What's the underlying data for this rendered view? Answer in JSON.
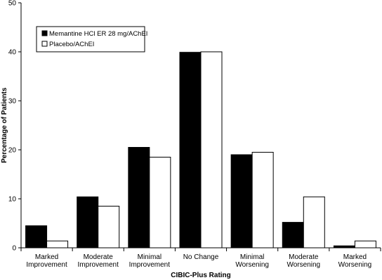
{
  "chart_data": {
    "type": "bar",
    "categories": [
      [
        "Marked",
        "Improvement"
      ],
      [
        "Moderate",
        "Improvement"
      ],
      [
        "Minimal",
        "Improvement"
      ],
      [
        "No Change"
      ],
      [
        "Minimal",
        "Worsening"
      ],
      [
        "Moderate",
        "Worsening"
      ],
      [
        "Marked",
        "Worsening"
      ]
    ],
    "series": [
      {
        "name": "Memantine HCl ER 28 mg/AChEI",
        "color": "#000000",
        "values": [
          4.5,
          10.4,
          20.5,
          39.9,
          19.0,
          5.2,
          0.4
        ]
      },
      {
        "name": "Placebo/AChEI",
        "color": "#ffffff",
        "values": [
          1.4,
          8.5,
          18.5,
          40.0,
          19.5,
          10.4,
          1.4
        ]
      }
    ],
    "xlabel": "CIBIC-Plus Rating",
    "ylabel": "Percentage of Patients",
    "ylim": [
      0,
      50
    ],
    "yticks": [
      0,
      10,
      20,
      30,
      40,
      50
    ],
    "grid": false,
    "legend_position": "top-left"
  }
}
